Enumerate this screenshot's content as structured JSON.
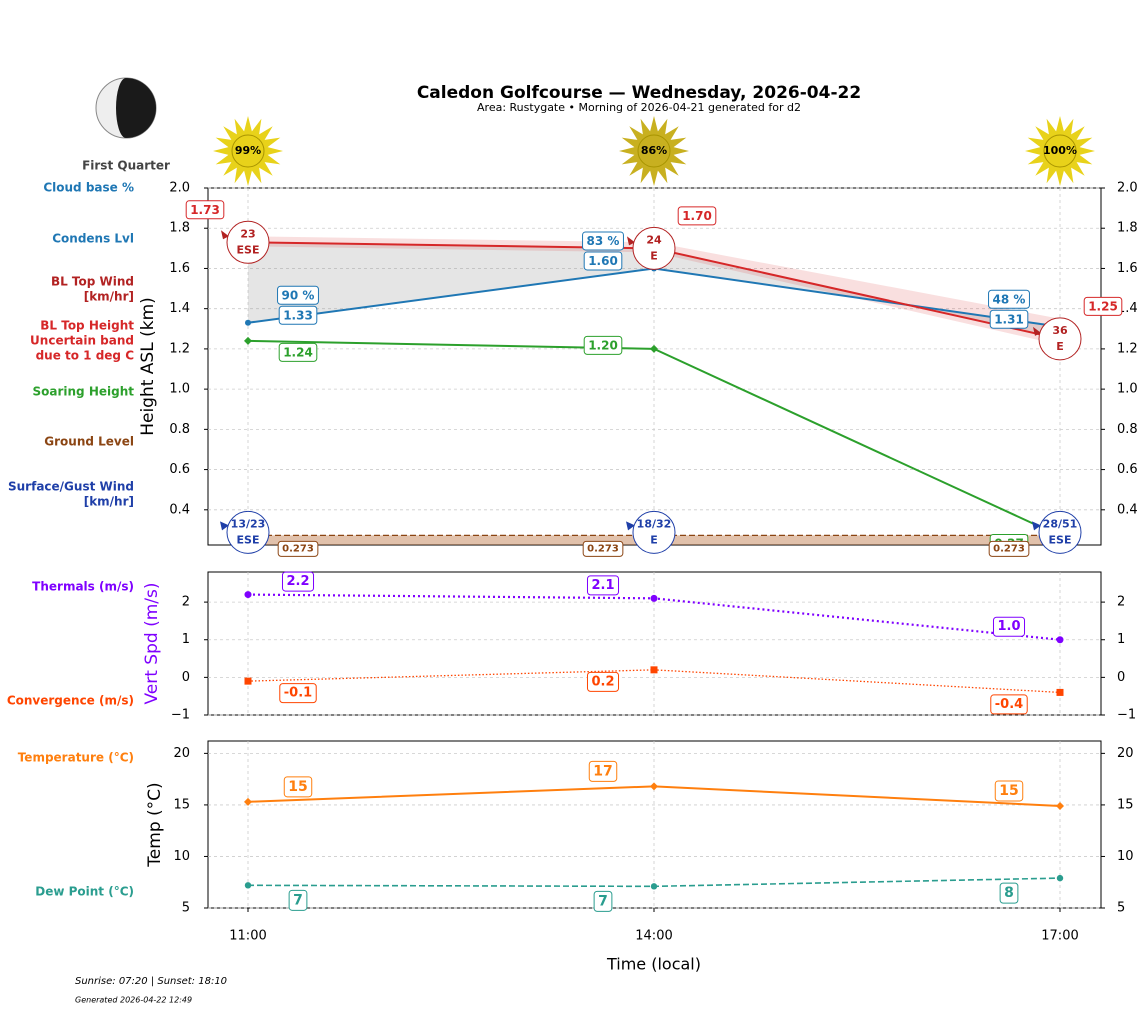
{
  "title": "Caledon Golfcourse — Wednesday, 2026-04-22",
  "subtitle": "Area: Rustygate • Morning of 2026-04-21 generated for d2",
  "moon_phase": "First Quarter",
  "sun": {
    "values": [
      99,
      86,
      100
    ],
    "value_labels": [
      "99%",
      "86%",
      "100%"
    ]
  },
  "footer": {
    "sun_times": "Sunrise: 07:20 | Sunset: 18:10",
    "generated": "Generated 2026-04-22 12:49"
  },
  "chart_data": [
    {
      "type": "line",
      "ylabel": "Height ASL (km)",
      "ylim": [
        0.225,
        2.0
      ],
      "yticks": [
        0.4,
        0.6,
        0.8,
        {
          "value": 1,
          "label": "1.0"
        },
        1.2,
        1.4,
        1.6,
        1.8,
        {
          "value": 2,
          "label": "2.0"
        }
      ],
      "grid": true,
      "series": [
        {
          "name": "Cloud base %",
          "color": "#1f77b4",
          "values": [
            90,
            83,
            48
          ],
          "value_labels": [
            "90 %",
            "83 %",
            "48 %"
          ]
        },
        {
          "name": "Condens Lvl",
          "color": "#1f77b4",
          "values": [
            1.33,
            1.6,
            1.31
          ],
          "value_labels": [
            "1.33",
            "1.60",
            "1.31"
          ]
        },
        {
          "name": [
            "BL Top Wind",
            "[km/hr]"
          ],
          "color": "#b22222",
          "values": [
            23,
            24,
            36
          ],
          "directions": [
            "ESE",
            "E",
            "E"
          ]
        },
        {
          "name": [
            "BL Top Height",
            "Uncertain band",
            "due to 1 deg C"
          ],
          "color": "#d62728",
          "values": [
            1.73,
            1.7,
            1.25
          ],
          "value_labels": [
            "1.73",
            "1.70",
            "1.25"
          ],
          "band_low": [
            1.71,
            1.68,
            1.22
          ],
          "band_high": [
            1.76,
            1.73,
            1.35
          ]
        },
        {
          "name": "Soaring Height",
          "color": "#2ca02c",
          "values": [
            1.24,
            1.2,
            0.27
          ],
          "value_labels": [
            "1.24",
            "1.20",
            "0.27"
          ]
        },
        {
          "name": "Ground Level",
          "color": "#8b4513",
          "values": [
            0.273,
            0.273,
            0.273
          ]
        },
        {
          "name": [
            "Surface/Gust Wind",
            "[km/hr]"
          ],
          "color": "#1f3fa8",
          "values": [
            13,
            18,
            28
          ],
          "gust": [
            23,
            32,
            51
          ],
          "value_labels": [
            "13/23",
            "18/32",
            "28/51"
          ],
          "directions": [
            "ESE",
            "E",
            "ESE"
          ]
        }
      ]
    },
    {
      "type": "line",
      "ylabel": "Vert Spd (m/s)",
      "ylim": [
        -1,
        2.8
      ],
      "yticks": [
        {
          "value": -1,
          "label": "−1"
        },
        0,
        1,
        2
      ],
      "grid": true,
      "series": [
        {
          "name": "Thermals (m/s)",
          "color": "#7f00ff",
          "values": [
            2.2,
            2.1,
            1.0
          ],
          "value_labels": [
            "2.2",
            "2.1",
            "1.0"
          ]
        },
        {
          "name": "Convergence (m/s)",
          "color": "#ff4500",
          "values": [
            -0.1,
            0.2,
            -0.4
          ]
        }
      ]
    },
    {
      "type": "line",
      "ylabel": "Temp (°C)",
      "xlabel": "Time (local)",
      "categories": [
        "11:00",
        "14:00",
        "17:00"
      ],
      "ylim": [
        5,
        21.2
      ],
      "yticks": [
        5,
        10,
        15,
        20
      ],
      "grid": true,
      "series": [
        {
          "name": "Temperature (°C)",
          "color": "#ff7f0e",
          "values": [
            15.3,
            16.8,
            14.9
          ],
          "value_labels": [
            "15",
            "17",
            "15"
          ]
        },
        {
          "name": "Dew Point (°C)",
          "color": "#2a9d8f",
          "values": [
            7.2,
            7.1,
            7.9
          ],
          "value_labels": [
            "7",
            "7",
            "8"
          ]
        }
      ]
    }
  ]
}
